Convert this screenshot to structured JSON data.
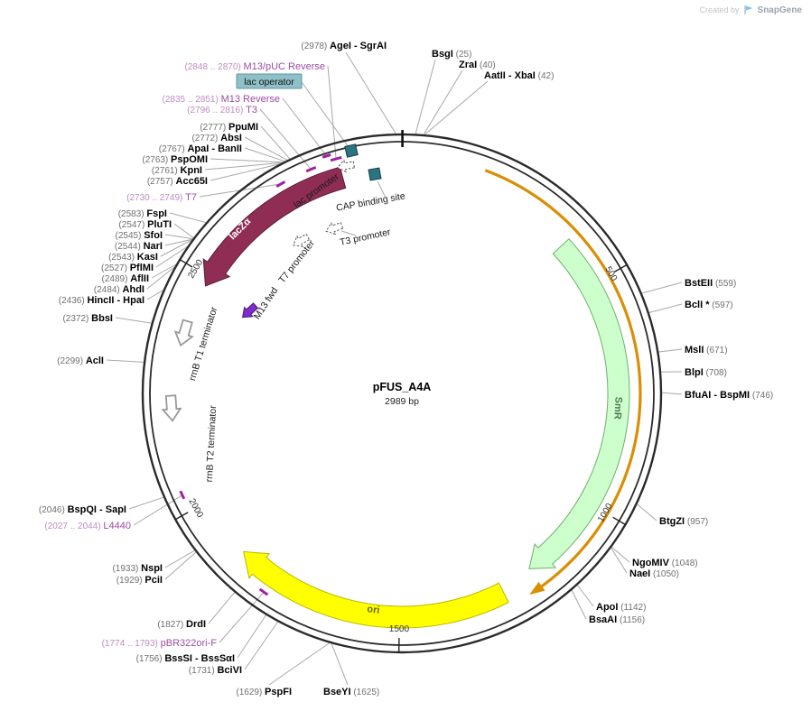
{
  "watermark": {
    "created_by": "Created by",
    "brand": "SnapGene"
  },
  "plasmid": {
    "name": "pFUS_A4A",
    "size_label": "2989 bp",
    "length_bp": 2989
  },
  "ticks": [
    {
      "label": "500",
      "bp": 500
    },
    {
      "label": "1000",
      "bp": 1000
    },
    {
      "label": "1500",
      "bp": 1500
    },
    {
      "label": "2000",
      "bp": 2000
    },
    {
      "label": "2500",
      "bp": 2500
    }
  ],
  "origin_tick_bp": 1,
  "features": [
    {
      "id": "lacza",
      "label": "lacZα",
      "type": "gene",
      "color": "#8f2d55",
      "border": "#5c1b36",
      "text_color": "#ffffff",
      "span_bp": [
        2480,
        2862
      ],
      "direction": "ccw"
    },
    {
      "id": "smr",
      "label": "SmR",
      "type": "gene",
      "color": "#ccffcc",
      "border": "#6fae6f",
      "text_color": "#557755",
      "span_bp": [
        392,
        1196
      ],
      "direction": "cw"
    },
    {
      "id": "ori",
      "label": "ori",
      "type": "origin",
      "color": "#ffff00",
      "border": "#b8b800",
      "text_color": "#6b6b00",
      "span_bp": [
        1270,
        1868
      ],
      "direction": "cw"
    },
    {
      "id": "fragment",
      "label": "",
      "type": "fragment",
      "color": "#d98e04",
      "span_bp": [
        170,
        1196
      ],
      "direction": "cw"
    }
  ],
  "small_features": [
    {
      "id": "lac-promoter",
      "label": "lac promoter"
    },
    {
      "id": "cap-binding-site",
      "label": "CAP binding site"
    },
    {
      "id": "lac-operator",
      "label": "lac operator"
    },
    {
      "id": "t3-promoter",
      "label": "T3 promoter"
    },
    {
      "id": "t7-promoter",
      "label": "T7 promoter"
    },
    {
      "id": "m13-fwd",
      "label": "M13 fwd"
    },
    {
      "id": "rrnb-t1",
      "label": "rrnB T1 terminator"
    },
    {
      "id": "rrnb-t2",
      "label": "rrnB T2 terminator"
    }
  ],
  "sites": [
    {
      "id": "age-sgr",
      "pre": "(2978) ",
      "name": "AgeI - SgrAI",
      "post": "",
      "kind": "enzyme",
      "bp": 2978
    },
    {
      "id": "bsgi",
      "pre": "",
      "name": "BsgI",
      "post": " (25)",
      "kind": "enzyme",
      "bp": 25
    },
    {
      "id": "zrai",
      "pre": "",
      "name": "ZraI",
      "post": " (40)",
      "kind": "enzyme",
      "bp": 40
    },
    {
      "id": "aatii-xbai",
      "pre": "",
      "name": "AatII - XbaI",
      "post": " (42)",
      "kind": "enzyme",
      "bp": 42
    },
    {
      "id": "m13puc-rev",
      "pre": "(2848 .. 2870) ",
      "name": "M13/pUC Reverse",
      "post": "",
      "kind": "primer",
      "bp": 2859,
      "range_bp": [
        2848,
        2870
      ]
    },
    {
      "id": "m13-rev",
      "pre": "(2835 .. 2851) ",
      "name": "M13 Reverse",
      "post": "",
      "kind": "primer",
      "bp": 2843,
      "range_bp": [
        2835,
        2851
      ]
    },
    {
      "id": "t3-primer",
      "pre": "(2796 .. 2816) ",
      "name": "T3",
      "post": "",
      "kind": "primer",
      "bp": 2806,
      "range_bp": [
        2796,
        2816
      ]
    },
    {
      "id": "ppumi",
      "pre": "(2777) ",
      "name": "PpuMI",
      "post": "",
      "kind": "enzyme",
      "bp": 2777
    },
    {
      "id": "absi",
      "pre": "(2772) ",
      "name": "AbsI",
      "post": "",
      "kind": "enzyme",
      "bp": 2772
    },
    {
      "id": "apai-banii",
      "pre": "(2767) ",
      "name": "ApaI - BanII",
      "post": "",
      "kind": "enzyme",
      "bp": 2767
    },
    {
      "id": "pspomi",
      "pre": "(2763) ",
      "name": "PspOMI",
      "post": "",
      "kind": "enzyme",
      "bp": 2763
    },
    {
      "id": "kpni",
      "pre": "(2761) ",
      "name": "KpnI",
      "post": "",
      "kind": "enzyme",
      "bp": 2761
    },
    {
      "id": "acc65i",
      "pre": "(2757) ",
      "name": "Acc65I",
      "post": "",
      "kind": "enzyme",
      "bp": 2757
    },
    {
      "id": "t7-primer",
      "pre": "(2730 .. 2749) ",
      "name": "T7",
      "post": "",
      "kind": "primer",
      "bp": 2740,
      "range_bp": [
        2730,
        2749
      ]
    },
    {
      "id": "fspi",
      "pre": "(2583) ",
      "name": "FspI",
      "post": "",
      "kind": "enzyme",
      "bp": 2583
    },
    {
      "id": "pluti",
      "pre": "(2547) ",
      "name": "PluTI",
      "post": "",
      "kind": "enzyme",
      "bp": 2547
    },
    {
      "id": "sfoi",
      "pre": "(2545) ",
      "name": "SfoI",
      "post": "",
      "kind": "enzyme",
      "bp": 2545
    },
    {
      "id": "nari",
      "pre": "(2544) ",
      "name": "NarI",
      "post": "",
      "kind": "enzyme",
      "bp": 2544
    },
    {
      "id": "kasi",
      "pre": "(2543) ",
      "name": "KasI",
      "post": "",
      "kind": "enzyme",
      "bp": 2543
    },
    {
      "id": "pflmi",
      "pre": "(2527) ",
      "name": "PflMI",
      "post": "",
      "kind": "enzyme",
      "bp": 2527
    },
    {
      "id": "aflii",
      "pre": "(2489) ",
      "name": "AflII",
      "post": "",
      "kind": "enzyme",
      "bp": 2489
    },
    {
      "id": "ahdi",
      "pre": "(2484) ",
      "name": "AhdI",
      "post": "",
      "kind": "enzyme",
      "bp": 2484
    },
    {
      "id": "hincii-hpai",
      "pre": "(2436) ",
      "name": "HincII - HpaI",
      "post": "",
      "kind": "enzyme",
      "bp": 2436
    },
    {
      "id": "bbsi",
      "pre": "(2372) ",
      "name": "BbsI",
      "post": "",
      "kind": "enzyme",
      "bp": 2372
    },
    {
      "id": "acli",
      "pre": "(2299) ",
      "name": "AclI",
      "post": "",
      "kind": "enzyme",
      "bp": 2299
    },
    {
      "id": "bspqi-sapi",
      "pre": "(2046) ",
      "name": "BspQI - SapI",
      "post": "",
      "kind": "enzyme",
      "bp": 2046
    },
    {
      "id": "l4440",
      "pre": "(2027 .. 2044) ",
      "name": "L4440",
      "post": "",
      "kind": "primer",
      "bp": 2035,
      "range_bp": [
        2027,
        2044
      ]
    },
    {
      "id": "nspi",
      "pre": "(1933) ",
      "name": "NspI",
      "post": "",
      "kind": "enzyme",
      "bp": 1933
    },
    {
      "id": "pcii",
      "pre": "(1929) ",
      "name": "PciI",
      "post": "",
      "kind": "enzyme",
      "bp": 1929
    },
    {
      "id": "drdi",
      "pre": "(1827) ",
      "name": "DrdI",
      "post": "",
      "kind": "enzyme",
      "bp": 1827
    },
    {
      "id": "pbr322ori-f",
      "pre": "(1774 .. 1793) ",
      "name": "pBR322ori-F",
      "post": "",
      "kind": "primer",
      "bp": 1783,
      "range_bp": [
        1774,
        1793
      ]
    },
    {
      "id": "bsssi",
      "pre": "(1756) ",
      "name": "BssSI - BssSαI",
      "post": "",
      "kind": "enzyme",
      "bp": 1756
    },
    {
      "id": "bcivi",
      "pre": "(1731) ",
      "name": "BciVI",
      "post": "",
      "kind": "enzyme",
      "bp": 1731
    },
    {
      "id": "pspfi",
      "pre": "(1629) ",
      "name": "PspFI",
      "post": "",
      "kind": "enzyme",
      "bp": 1629
    },
    {
      "id": "bseyi",
      "pre": "",
      "name": "BseYI",
      "post": " (1625)",
      "kind": "enzyme",
      "bp": 1625
    },
    {
      "id": "bsteii",
      "pre": "",
      "name": "BstEII",
      "post": " (559)",
      "kind": "enzyme",
      "bp": 559
    },
    {
      "id": "bcli",
      "pre": "",
      "name": "BclI *",
      "post": " (597)",
      "kind": "enzyme",
      "bp": 597
    },
    {
      "id": "msli",
      "pre": "",
      "name": "MslI",
      "post": " (671)",
      "kind": "enzyme",
      "bp": 671
    },
    {
      "id": "blpi",
      "pre": "",
      "name": "BlpI",
      "post": " (708)",
      "kind": "enzyme",
      "bp": 708
    },
    {
      "id": "bfuai-bspmi",
      "pre": "",
      "name": "BfuAI - BspMI",
      "post": " (746)",
      "kind": "enzyme",
      "bp": 746
    },
    {
      "id": "btgzi",
      "pre": "",
      "name": "BtgZI",
      "post": " (957)",
      "kind": "enzyme",
      "bp": 957
    },
    {
      "id": "ngomiv",
      "pre": "",
      "name": "NgoMIV",
      "post": " (1048)",
      "kind": "enzyme",
      "bp": 1048
    },
    {
      "id": "naei",
      "pre": "",
      "name": "NaeI",
      "post": " (1050)",
      "kind": "enzyme",
      "bp": 1050
    },
    {
      "id": "apoi",
      "pre": "",
      "name": "ApoI",
      "post": " (1142)",
      "kind": "enzyme",
      "bp": 1142
    },
    {
      "id": "bsaai",
      "pre": "",
      "name": "BsaAI",
      "post": " (1156)",
      "kind": "enzyme",
      "bp": 1156
    }
  ]
}
